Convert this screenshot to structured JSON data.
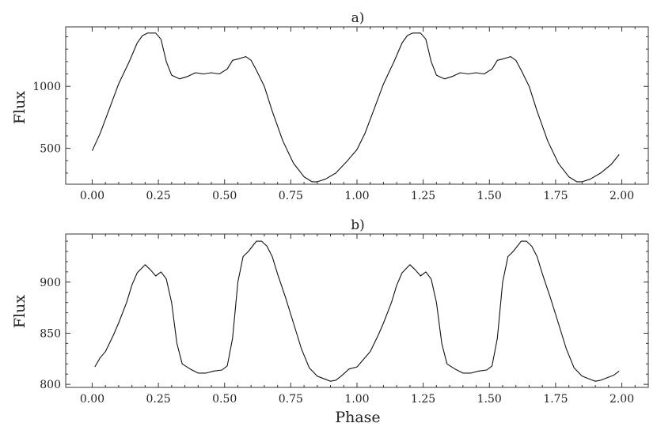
{
  "chart_data": [
    {
      "type": "line",
      "title": "a)",
      "xlabel": "",
      "ylabel": "Flux",
      "xlim": [
        -0.1,
        2.1
      ],
      "ylim": [
        210,
        1480
      ],
      "xticks": [
        0.0,
        0.25,
        0.5,
        0.75,
        1.0,
        1.25,
        1.5,
        1.75,
        2.0
      ],
      "xtick_labels": [
        "0.00",
        "0.25",
        "0.50",
        "0.75",
        "1.00",
        "1.25",
        "1.50",
        "1.75",
        "2.00"
      ],
      "yticks": [
        500,
        1000
      ],
      "ytick_labels": [
        "500",
        "1000"
      ],
      "series": [
        {
          "x": [
            0.0,
            0.03,
            0.06,
            0.1,
            0.14,
            0.17,
            0.19,
            0.21,
            0.24,
            0.26,
            0.28,
            0.3,
            0.33,
            0.36,
            0.39,
            0.42,
            0.45,
            0.48,
            0.51,
            0.53,
            0.55,
            0.58,
            0.6,
            0.62,
            0.65,
            0.68,
            0.72,
            0.76,
            0.8,
            0.83,
            0.85,
            0.88,
            0.92,
            0.96,
            1.0,
            1.03,
            1.06,
            1.1,
            1.14,
            1.17,
            1.19,
            1.21,
            1.24,
            1.26,
            1.28,
            1.3,
            1.33,
            1.36,
            1.39,
            1.42,
            1.45,
            1.48,
            1.51,
            1.53,
            1.55,
            1.58,
            1.6,
            1.62,
            1.65,
            1.68,
            1.72,
            1.76,
            1.8,
            1.83,
            1.85,
            1.88,
            1.92,
            1.96,
            1.99
          ],
          "y": [
            480,
            620,
            790,
            1020,
            1200,
            1350,
            1410,
            1430,
            1430,
            1380,
            1200,
            1090,
            1060,
            1080,
            1110,
            1100,
            1110,
            1100,
            1140,
            1210,
            1220,
            1240,
            1210,
            1130,
            1000,
            800,
            560,
            380,
            270,
            230,
            230,
            250,
            300,
            390,
            490,
            620,
            790,
            1020,
            1200,
            1350,
            1410,
            1430,
            1430,
            1380,
            1200,
            1090,
            1060,
            1080,
            1110,
            1100,
            1110,
            1100,
            1140,
            1210,
            1220,
            1240,
            1210,
            1130,
            1000,
            800,
            560,
            380,
            270,
            230,
            230,
            250,
            300,
            370,
            450
          ]
        }
      ]
    },
    {
      "type": "line",
      "title": "b)",
      "xlabel": "Phase",
      "ylabel": "Flux",
      "xlim": [
        -0.1,
        2.1
      ],
      "ylim": [
        797,
        947
      ],
      "xticks": [
        0.0,
        0.25,
        0.5,
        0.75,
        1.0,
        1.25,
        1.5,
        1.75,
        2.0
      ],
      "xtick_labels": [
        "0.00",
        "0.25",
        "0.50",
        "0.75",
        "1.00",
        "1.25",
        "1.50",
        "1.75",
        "2.00"
      ],
      "yticks": [
        800,
        850,
        900
      ],
      "ytick_labels": [
        "800",
        "850",
        "900"
      ],
      "series": [
        {
          "x": [
            0.01,
            0.03,
            0.05,
            0.08,
            0.1,
            0.13,
            0.15,
            0.17,
            0.2,
            0.22,
            0.24,
            0.26,
            0.28,
            0.3,
            0.32,
            0.34,
            0.37,
            0.4,
            0.43,
            0.46,
            0.49,
            0.51,
            0.53,
            0.55,
            0.57,
            0.59,
            0.62,
            0.64,
            0.66,
            0.68,
            0.7,
            0.73,
            0.76,
            0.79,
            0.82,
            0.85,
            0.88,
            0.9,
            0.92,
            0.94,
            0.97,
            1.0,
            1.03,
            1.05,
            1.08,
            1.1,
            1.13,
            1.15,
            1.17,
            1.2,
            1.22,
            1.24,
            1.26,
            1.28,
            1.3,
            1.32,
            1.34,
            1.37,
            1.4,
            1.43,
            1.46,
            1.49,
            1.51,
            1.53,
            1.55,
            1.57,
            1.59,
            1.62,
            1.64,
            1.66,
            1.68,
            1.7,
            1.73,
            1.76,
            1.79,
            1.82,
            1.85,
            1.88,
            1.9,
            1.92,
            1.94,
            1.97,
            1.99
          ],
          "y": [
            817,
            826,
            832,
            848,
            860,
            880,
            897,
            909,
            917,
            912,
            906,
            910,
            903,
            880,
            840,
            820,
            815,
            811,
            811,
            813,
            814,
            818,
            845,
            900,
            925,
            930,
            940,
            940,
            935,
            925,
            908,
            885,
            860,
            835,
            816,
            808,
            805,
            803,
            804,
            808,
            815,
            817,
            826,
            832,
            848,
            860,
            880,
            897,
            909,
            917,
            912,
            906,
            910,
            903,
            880,
            840,
            820,
            815,
            811,
            811,
            813,
            814,
            818,
            845,
            900,
            925,
            930,
            940,
            940,
            935,
            925,
            908,
            885,
            860,
            835,
            816,
            808,
            805,
            803,
            804,
            806,
            809,
            813
          ]
        }
      ]
    }
  ]
}
